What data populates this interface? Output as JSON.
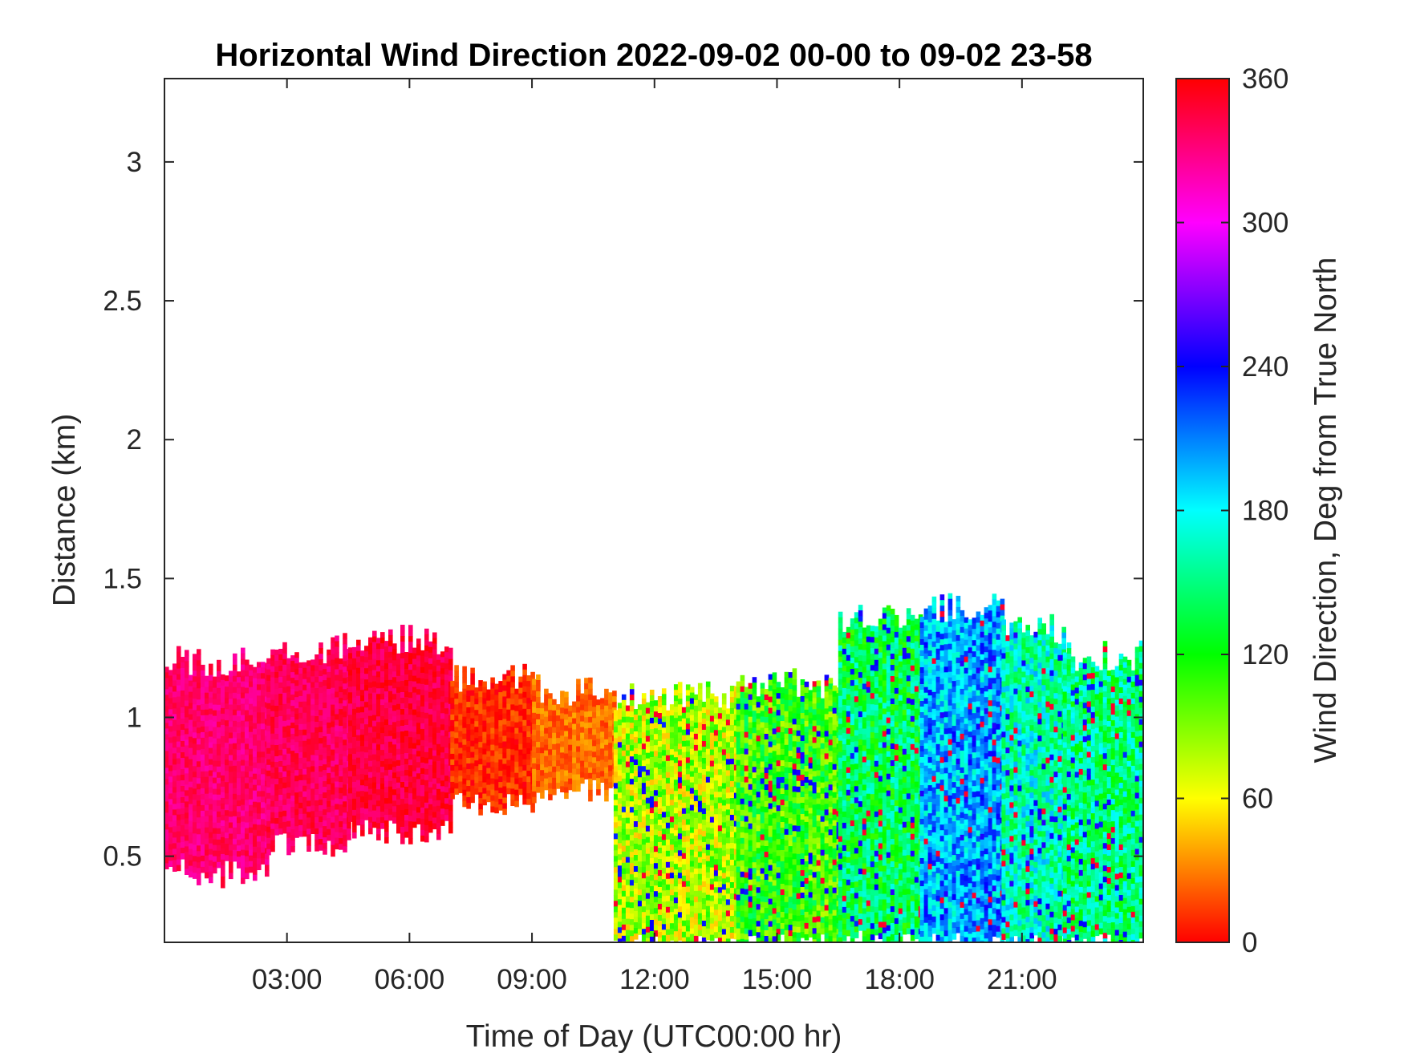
{
  "chart_data": {
    "type": "heatmap",
    "title": "Horizontal Wind Direction 2022-09-02 00-00 to 09-02 23-58",
    "xlabel": "Time of Day (UTC00:00 hr)",
    "ylabel": "Distance (km)",
    "colorbar_label": "Wind Direction, Deg from True North",
    "x_tick_labels": [
      "03:00",
      "06:00",
      "09:00",
      "12:00",
      "15:00",
      "18:00",
      "21:00"
    ],
    "x_tick_hours": [
      3,
      6,
      9,
      12,
      15,
      18,
      21
    ],
    "xlim_hours": [
      0,
      23.97
    ],
    "y_tick_labels": [
      "0.5",
      "1",
      "1.5",
      "2",
      "2.5",
      "3"
    ],
    "y_tick_values": [
      0.5,
      1,
      1.5,
      2,
      2.5,
      3
    ],
    "ylim": [
      0.19,
      3.3
    ],
    "colorbar_tick_labels": [
      "0",
      "60",
      "120",
      "180",
      "240",
      "300",
      "360"
    ],
    "colorbar_tick_values": [
      0,
      60,
      120,
      180,
      240,
      300,
      360
    ],
    "clim": [
      0,
      360
    ],
    "colormap": "hsv",
    "grid": false,
    "segments": [
      {
        "hours": [
          0.0,
          2.5
        ],
        "top_km": 1.2,
        "bottom_km": 0.45,
        "dir_deg": 335
      },
      {
        "hours": [
          2.5,
          4.5
        ],
        "top_km": 1.25,
        "bottom_km": 0.55,
        "dir_deg": 340
      },
      {
        "hours": [
          4.5,
          7.0
        ],
        "top_km": 1.28,
        "bottom_km": 0.6,
        "dir_deg": 345
      },
      {
        "hours": [
          7.0,
          9.0
        ],
        "top_km": 1.15,
        "bottom_km": 0.7,
        "dir_deg": 10
      },
      {
        "hours": [
          9.0,
          11.0
        ],
        "top_km": 1.1,
        "bottom_km": 0.75,
        "dir_deg": 25
      },
      {
        "hours": [
          11.0,
          14.0
        ],
        "top_km": 1.08,
        "bottom_km": 0.19,
        "dir_deg": 80
      },
      {
        "hours": [
          14.0,
          16.5
        ],
        "top_km": 1.12,
        "bottom_km": 0.19,
        "dir_deg": 110
      },
      {
        "hours": [
          16.5,
          18.5
        ],
        "top_km": 1.35,
        "bottom_km": 0.19,
        "dir_deg": 140
      },
      {
        "hours": [
          18.5,
          20.5
        ],
        "top_km": 1.4,
        "bottom_km": 0.19,
        "dir_deg": 200
      },
      {
        "hours": [
          20.5,
          22.0
        ],
        "top_km": 1.32,
        "bottom_km": 0.19,
        "dir_deg": 165
      },
      {
        "hours": [
          22.0,
          24.0
        ],
        "top_km": 1.22,
        "bottom_km": 0.19,
        "dir_deg": 150
      }
    ]
  }
}
